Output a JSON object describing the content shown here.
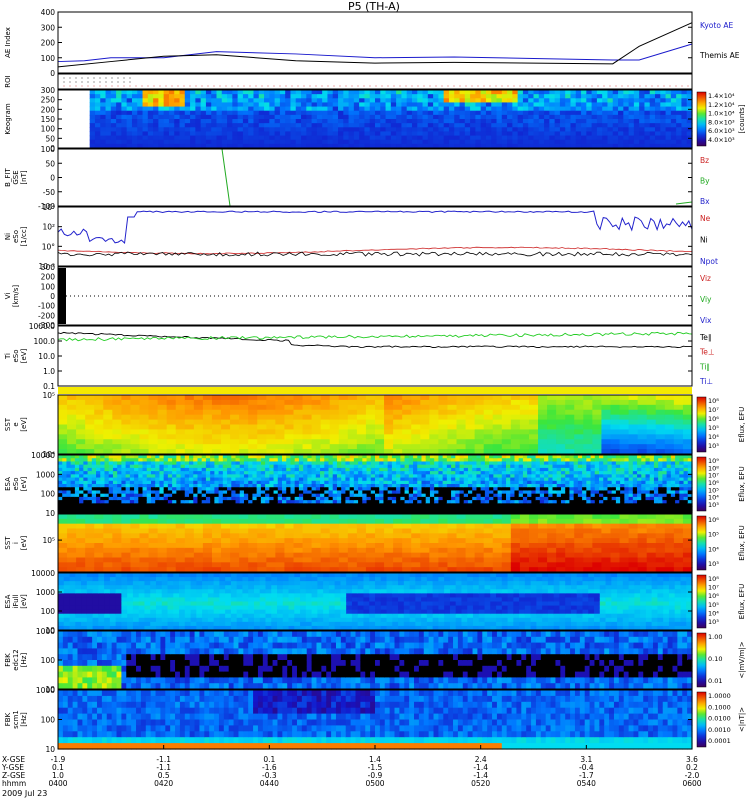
{
  "title": "P5 (TH-A)",
  "date": "2009 Jul 23",
  "chart_data": [
    {
      "panel": "ae",
      "type": "line",
      "ylabel": "AE Index",
      "ylim": [
        0,
        400
      ],
      "yticks": [
        "0",
        "100",
        "200",
        "300",
        "400"
      ],
      "legend": [
        "Kyoto AE",
        "Themis AE"
      ],
      "colors": [
        "#1a1acc",
        "#000000"
      ],
      "series": [
        {
          "name": "Kyoto AE",
          "x": [
            0,
            5,
            10,
            20,
            30,
            45,
            60,
            75,
            90,
            105,
            110,
            120
          ],
          "values": [
            75,
            80,
            100,
            100,
            140,
            125,
            100,
            105,
            95,
            85,
            85,
            190
          ]
        },
        {
          "name": "Themis AE",
          "x": [
            0,
            10,
            20,
            30,
            45,
            60,
            75,
            90,
            105,
            110,
            120
          ],
          "values": [
            40,
            75,
            110,
            120,
            80,
            65,
            70,
            65,
            60,
            175,
            330
          ]
        }
      ]
    },
    {
      "panel": "roi",
      "type": "table",
      "ylabel": "ROI"
    },
    {
      "panel": "keogram",
      "type": "heatmap",
      "ylabel": "Keogram",
      "ylim": [
        0,
        300
      ],
      "yticks": [
        "0",
        "50",
        "100",
        "150",
        "200",
        "250",
        "300"
      ],
      "colorbar_ticks": [
        "1.4×10⁴",
        "1.2×10⁴",
        "1.0×10⁴",
        "8.0×10³",
        "6.0×10³",
        "4.0×10³"
      ],
      "colorbar_label": "[counts]"
    },
    {
      "panel": "bfield",
      "type": "line",
      "ylabel_lines": [
        "B_FIT",
        "GSE",
        "[nT]"
      ],
      "ylim": [
        -100,
        100
      ],
      "yticks": [
        "-100",
        "-50",
        "0",
        "50",
        "100"
      ],
      "legend": [
        "Bz",
        "By",
        "Bx"
      ],
      "colors": [
        "#cc2222",
        "#22aa22",
        "#2222cc"
      ]
    },
    {
      "panel": "density",
      "type": "line",
      "ylabel_lines": [
        "Ni",
        "eSo",
        "[1/cc]"
      ],
      "yticks": [
        "10⁻²",
        "10°",
        "10²",
        "10⁴"
      ],
      "legend": [
        "Ne",
        "Ni",
        "Npot"
      ],
      "colors": [
        "#cc2222",
        "#000000",
        "#2222cc"
      ]
    },
    {
      "panel": "velocity",
      "type": "line",
      "ylabel_lines": [
        "Vi",
        "[km/s]"
      ],
      "ylim": [
        -300,
        300
      ],
      "yticks": [
        "-300",
        "-200",
        "-100",
        "0",
        "100",
        "200",
        "300"
      ],
      "legend": [
        "Viz",
        "Viy",
        "Vix"
      ],
      "colors": [
        "#cc2222",
        "#22aa22",
        "#2222cc"
      ]
    },
    {
      "panel": "temperature",
      "type": "line",
      "ylabel_lines": [
        "Ti",
        "eSo",
        "[eV]"
      ],
      "yticks": [
        "0.1",
        "1.0",
        "10.0",
        "100.0",
        "1000.0"
      ],
      "legend": [
        "Te∥",
        "Te⊥",
        "Ti∥",
        "Ti⊥"
      ],
      "colors": [
        "#000000",
        "#cc2222",
        "#22aa22",
        "#2222cc"
      ]
    },
    {
      "panel": "sst_e",
      "type": "heatmap",
      "ylabel_lines": [
        "SST",
        "e",
        "[eV]"
      ],
      "yticks": [
        "10⁴",
        "10⁵"
      ],
      "colorbar_ticks": [
        "10⁸",
        "10⁷",
        "10⁶",
        "10⁵",
        "10⁴",
        "10³"
      ],
      "colorbar_label": "Eflux, EFU"
    },
    {
      "panel": "esa_e",
      "type": "heatmap",
      "ylabel_lines": [
        "ESA",
        "eSo",
        "[eV]"
      ],
      "yticks": [
        "10",
        "100",
        "1000",
        "10000"
      ],
      "colorbar_ticks": [
        "10⁹",
        "10⁸",
        "10⁷",
        "10⁶",
        "10⁵",
        "10⁴",
        "10³"
      ],
      "colorbar_label": "Eflux, EFU"
    },
    {
      "panel": "sst_i",
      "type": "heatmap",
      "ylabel_lines": [
        "SST",
        "i",
        "[eV]"
      ],
      "yticks": [
        "10⁵"
      ],
      "colorbar_ticks": [
        "10⁶",
        "10⁵",
        "10⁴",
        "10³"
      ],
      "colorbar_label": "Eflux, EFU"
    },
    {
      "panel": "esa_i",
      "type": "heatmap",
      "ylabel_lines": [
        "ESA",
        "iFull",
        "[eV]"
      ],
      "yticks": [
        "10",
        "100",
        "1000",
        "10000"
      ],
      "colorbar_ticks": [
        "10⁸",
        "10⁷",
        "10⁶",
        "10⁵",
        "10⁴",
        "10³"
      ],
      "colorbar_label": "Eflux, EFU"
    },
    {
      "panel": "fbk_e",
      "type": "heatmap",
      "ylabel_lines": [
        "FBK",
        "edc12",
        "[Hz]"
      ],
      "yticks": [
        "10",
        "100",
        "1000"
      ],
      "colorbar_ticks": [
        "1.00",
        "0.10",
        "0.01"
      ],
      "colorbar_label": "<|mV/m|>"
    },
    {
      "panel": "fbk_b",
      "type": "heatmap",
      "ylabel_lines": [
        "FBK",
        "scm1",
        "[Hz]"
      ],
      "yticks": [
        "10",
        "100",
        "1000"
      ],
      "colorbar_ticks": [
        "1.0000",
        "0.1000",
        "0.0100",
        "0.0010",
        "0.0001"
      ],
      "colorbar_label": "<|nT|>"
    }
  ],
  "xaxis": {
    "row_labels": [
      "X-GSE",
      "Y-GSE",
      "Z-GSE",
      "hhmm"
    ],
    "columns": [
      {
        "x": "-1.9",
        "y": "0.1",
        "z": "1.0",
        "t": "0400"
      },
      {
        "x": "-1.1",
        "y": "-1.1",
        "z": "0.5",
        "t": "0420"
      },
      {
        "x": "0.1",
        "y": "-1.6",
        "z": "-0.3",
        "t": "0440"
      },
      {
        "x": "1.4",
        "y": "-1.5",
        "z": "-0.9",
        "t": "0500"
      },
      {
        "x": "2.4",
        "y": "-1.4",
        "z": "-1.4",
        "t": "0520"
      },
      {
        "x": "3.1",
        "y": "-0.4",
        "z": "-1.7",
        "t": "0540"
      },
      {
        "x": "3.6",
        "y": "0.2",
        "z": "-2.0",
        "t": "0600"
      }
    ]
  }
}
